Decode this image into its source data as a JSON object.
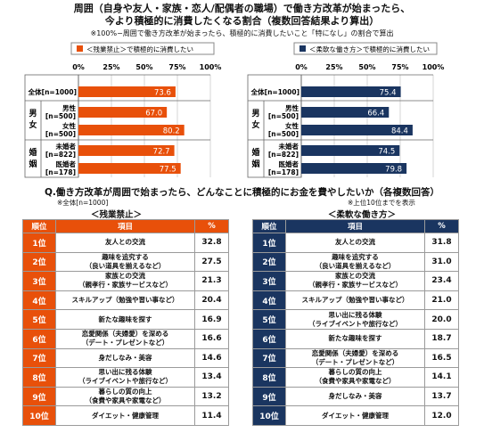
{
  "header": {
    "title_line1": "周囲（自身や友人・家族・恋人/配偶者の職場）で働き方改革が始まったら、",
    "title_line2": "今より積極的に消費したくなる割合（複数回答結果より算出）",
    "note": "※100%−周囲で働き方改革が始まったら、積極的に消費したいこと「特になし」の割合で算出"
  },
  "labels": {
    "sex": "男女",
    "marital": "婚姻",
    "rows": [
      "全体[n=1000]",
      "男性\n[n=500]",
      "女性\n[n=500]",
      "未婚者\n[n=822]",
      "既婚者\n[n=178]"
    ]
  },
  "chart_data": [
    {
      "type": "bar",
      "title": "＜残業禁止＞で積極的に消費したい",
      "categories": [
        "全体[n=1000]",
        "男性[n=500]",
        "女性[n=500]",
        "未婚者[n=822]",
        "既婚者[n=178]"
      ],
      "values": [
        73.6,
        67.0,
        80.2,
        72.7,
        77.5
      ],
      "xlim": [
        0,
        100
      ],
      "ticks": [
        "0%",
        "25%",
        "50%",
        "75%",
        "100%"
      ],
      "color": "#e8500a",
      "legend": "top"
    },
    {
      "type": "bar",
      "title": "＜柔軟な働き方＞で積極的に消費したい",
      "categories": [
        "全体[n=1000]",
        "男性[n=500]",
        "女性[n=500]",
        "未婚者[n=822]",
        "既婚者[n=178]"
      ],
      "values": [
        75.4,
        66.4,
        84.4,
        74.5,
        79.8
      ],
      "xlim": [
        0,
        100
      ],
      "ticks": [
        "0%",
        "25%",
        "50%",
        "75%",
        "100%"
      ],
      "color": "#1a3560",
      "legend": "top"
    },
    {
      "type": "table",
      "title": "＜残業禁止＞",
      "columns": [
        "順位",
        "項目",
        "%"
      ],
      "rows": [
        [
          "1位",
          "友人との交流",
          "32.8"
        ],
        [
          "2位",
          "趣味を追究する\n（良い道具を揃えるなど）",
          "27.5"
        ],
        [
          "3位",
          "家族との交流\n（親孝行・家族サービスなど）",
          "21.3"
        ],
        [
          "4位",
          "スキルアップ（勉強や習い事など）",
          "20.4"
        ],
        [
          "5位",
          "新たな趣味を探す",
          "16.9"
        ],
        [
          "6位",
          "恋愛関係（夫婦愛）を深める\n（デート・プレゼントなど）",
          "16.6"
        ],
        [
          "7位",
          "身だしなみ・美容",
          "14.6"
        ],
        [
          "8位",
          "思い出に残る体験\n（ライブイベントや旅行など）",
          "13.4"
        ],
        [
          "9位",
          "暮らしの質の向上\n（食費や家具や家電など）",
          "13.2"
        ],
        [
          "10位",
          "ダイエット・健康管理",
          "11.4"
        ]
      ]
    },
    {
      "type": "table",
      "title": "＜柔軟な働き方＞",
      "columns": [
        "順位",
        "項目",
        "%"
      ],
      "rows": [
        [
          "1位",
          "友人との交流",
          "31.8"
        ],
        [
          "2位",
          "趣味を追究する\n（良い道具を揃えるなど）",
          "31.0"
        ],
        [
          "3位",
          "家族との交流\n（親孝行・家族サービスなど）",
          "23.4"
        ],
        [
          "4位",
          "スキルアップ（勉強や習い事など）",
          "21.0"
        ],
        [
          "5位",
          "思い出に残る体験\n（ライブイベントや旅行など）",
          "20.0"
        ],
        [
          "6位",
          "新たな趣味を探す",
          "18.7"
        ],
        [
          "7位",
          "恋愛関係（夫婦愛）を深める\n（デート・プレゼントなど）",
          "16.5"
        ],
        [
          "8位",
          "暮らしの質の向上\n（食費や家具や家電など）",
          "14.1"
        ],
        [
          "9位",
          "身だしなみ・美容",
          "13.7"
        ],
        [
          "10位",
          "ダイエット・健康管理",
          "12.0"
        ]
      ]
    }
  ],
  "section2": {
    "question": "Q.働き方改革が周囲で始まったら、どんなことに積極的にお金を費やしたいか（各複数回答）",
    "base": "※全体[n=1000]",
    "top10": "※上位10位までを表示"
  }
}
